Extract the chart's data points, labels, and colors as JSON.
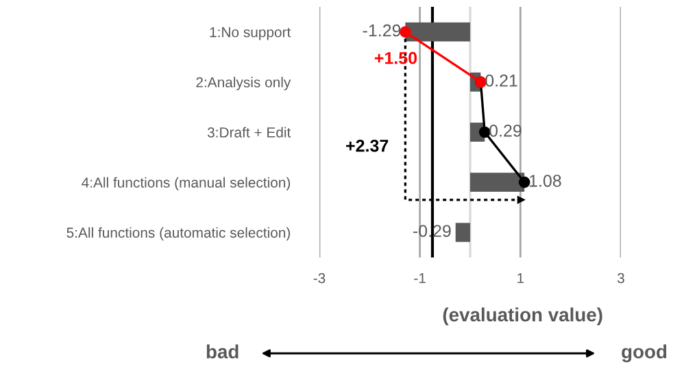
{
  "chart_data": {
    "type": "bar",
    "orientation": "horizontal",
    "categories": [
      "1:No support",
      "2:Analysis only",
      "3:Draft + Edit",
      "4:All functions (manual selection)",
      "5:All functions (automatic selection)"
    ],
    "series": [
      {
        "color": "#595959",
        "values": [
          -1.29,
          0.21,
          0.29,
          1.08,
          -0.29
        ],
        "value_labels": [
          "-1.29",
          "0.21",
          "0.29",
          "1.08",
          "-0.29"
        ]
      },
      {
        "type": "line",
        "color": "#000000",
        "marker": "circle",
        "values": [
          null,
          0.21,
          0.29,
          1.08,
          null
        ]
      },
      {
        "type": "line",
        "color": "#ff0000",
        "marker": "circle",
        "values": [
          -1.29,
          0.21,
          null,
          null,
          null
        ]
      }
    ],
    "xlim": [
      -3,
      3
    ],
    "xticks": [
      -3,
      -1,
      1,
      3
    ],
    "grid": "x",
    "xlabel": "(evaluation value)",
    "ref_lines": [
      {
        "axis": "x",
        "value": 0,
        "color": "#d9d9d9"
      },
      {
        "axis": "x",
        "value": -0.75,
        "color": "#000000"
      }
    ],
    "annotations": [
      "+1.50",
      "+2.37",
      "bad",
      "good"
    ]
  }
}
